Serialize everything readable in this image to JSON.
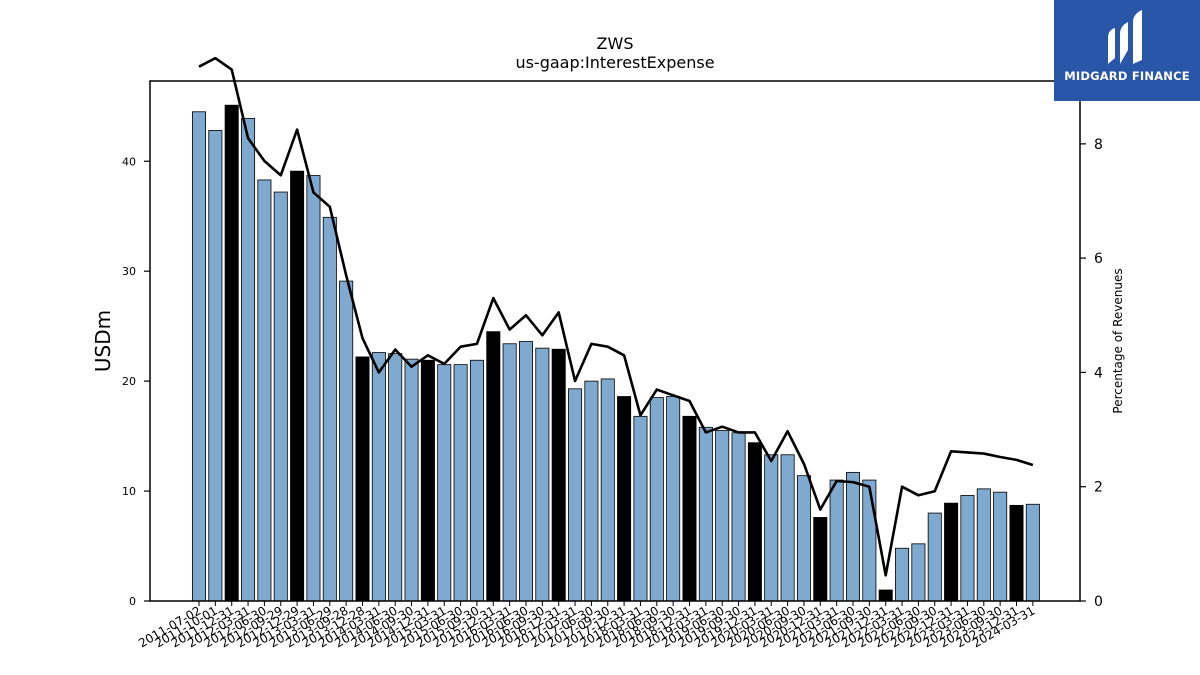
{
  "chart_data": {
    "type": "bar",
    "title": "ZWS",
    "subtitle": "us-gaap:InterestExpense",
    "ylabel": "USDm",
    "y2label": "Percentage of Revenues",
    "ylim": [
      0,
      47.3
    ],
    "y2lim": [
      0,
      9.1
    ],
    "yticks": [
      0,
      10,
      20,
      30,
      40
    ],
    "y2ticks": [
      0,
      2,
      4,
      6,
      8
    ],
    "categories": [
      "2011-07-02",
      "2011-10-01",
      "2011-12-31",
      "2012-03-31",
      "2012-06-30",
      "2012-09-29",
      "2012-12-29",
      "2013-03-31",
      "2013-06-29",
      "2013-09-28",
      "2013-12-28",
      "2014-03-31",
      "2014-06-30",
      "2014-09-30",
      "2014-12-31",
      "2015-03-31",
      "2015-06-30",
      "2015-09-30",
      "2015-12-31",
      "2016-03-31",
      "2016-06-30",
      "2016-09-30",
      "2016-12-31",
      "2017-03-31",
      "2017-06-30",
      "2017-09-30",
      "2017-12-31",
      "2018-03-31",
      "2018-06-30",
      "2018-09-30",
      "2018-12-31",
      "2019-03-31",
      "2019-06-30",
      "2019-09-30",
      "2019-12-31",
      "2020-03-31",
      "2020-06-30",
      "2020-09-30",
      "2020-12-31",
      "2021-03-31",
      "2021-06-30",
      "2021-09-30",
      "2021-12-31",
      "2022-03-31",
      "2022-06-30",
      "2022-09-30",
      "2022-12-31",
      "2023-03-31",
      "2023-06-30",
      "2023-09-30",
      "2023-12-31",
      "2024-03-31"
    ],
    "tick_labels": [
      "2011-07-02",
      "2011-10-01",
      "2011-12-31",
      "2012-03-31",
      "2012-06-30",
      "2012-09-29",
      "2012-12-29",
      "2013-03-31",
      "2013-06-29",
      "2013-09-28",
      "2013-12-28",
      "2014-03-31",
      "2014-06-30",
      "2014-09-30",
      "2014-12-31",
      "2015-03-31",
      "2015-06-30",
      "2015-09-30",
      "2015-12-31",
      "2016-03-31",
      "2016-06-30",
      "2016-09-30",
      "2016-12-31",
      "2017-03-31",
      "2017-06-30",
      "2017-09-30",
      "2017-12-31",
      "2018-03-31",
      "2018-06-30",
      "2018-09-30",
      "2018-12-31",
      "2019-03-31",
      "2019-06-30",
      "2019-09-30",
      "2019-12-31",
      "2020-03-31",
      "2020-06-30",
      "2020-09-30",
      "2020-12-31",
      "2021-03-31",
      "2021-06-30",
      "2021-09-30",
      "2021-12-31",
      "2022-03-31",
      "2022-06-30",
      "2022-09-30",
      "2022-12-31",
      "2023-03-31",
      "2023-06-30",
      "2023-09-30",
      "2023-12-31",
      "2024-03-31"
    ],
    "series": [
      {
        "type": "bar",
        "axis": "left",
        "values": [
          44.5,
          42.8,
          45.1,
          43.9,
          38.3,
          37.2,
          39.1,
          38.7,
          34.9,
          29.1,
          22.2,
          22.6,
          22.5,
          22.0,
          21.9,
          21.5,
          21.5,
          21.9,
          24.5,
          23.4,
          23.6,
          23.0,
          22.9,
          19.3,
          20.0,
          20.2,
          18.6,
          16.8,
          18.5,
          18.6,
          16.8,
          15.8,
          15.5,
          15.3,
          14.4,
          13.3,
          13.3,
          11.4,
          7.6,
          11.0,
          11.7,
          11.0,
          1.0,
          4.8,
          5.2,
          8.0,
          8.9,
          9.6,
          10.2,
          9.9,
          8.7,
          8.8
        ],
        "highlight": [
          false,
          false,
          true,
          false,
          false,
          false,
          true,
          false,
          false,
          false,
          true,
          false,
          false,
          false,
          true,
          false,
          false,
          false,
          true,
          false,
          false,
          false,
          true,
          false,
          false,
          false,
          true,
          false,
          false,
          false,
          true,
          false,
          false,
          false,
          true,
          false,
          false,
          false,
          true,
          false,
          false,
          false,
          true,
          false,
          false,
          false,
          true,
          false,
          false,
          false,
          true,
          false
        ],
        "color": "#7fa9cf",
        "highlight_color": "#000000"
      },
      {
        "type": "line",
        "axis": "right",
        "values": [
          9.35,
          9.5,
          9.3,
          8.1,
          7.7,
          7.45,
          8.25,
          7.15,
          6.9,
          5.7,
          4.6,
          4.0,
          4.4,
          4.1,
          4.3,
          4.15,
          4.45,
          4.5,
          5.3,
          4.75,
          5.0,
          4.65,
          5.05,
          3.85,
          4.5,
          4.45,
          4.3,
          3.25,
          3.7,
          3.6,
          3.5,
          2.95,
          3.05,
          2.95,
          2.95,
          2.45,
          2.97,
          2.4,
          1.6,
          2.1,
          2.08,
          2.0,
          0.45,
          2.0,
          1.85,
          1.92,
          2.62,
          2.6,
          2.58,
          2.52,
          2.47,
          2.38
        ],
        "color": "#000000"
      }
    ]
  },
  "logo": {
    "text": "MIDGARD FINANCE",
    "bg": "#2a56a8"
  }
}
